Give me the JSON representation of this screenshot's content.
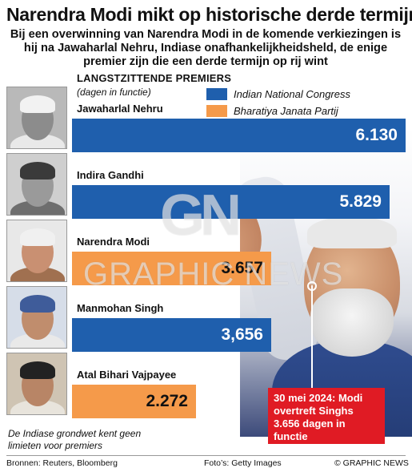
{
  "header": {
    "title": "Narendra Modi mikt op historische derde termijn",
    "subtitle": "Bij een overwinning van Narendra Modi in de komende verkiezingen is hij na Jawaharlal Nehru, Indiase onafhankelijkheidsheld, de enige premier zijn die een derde termijn op rij wint"
  },
  "chart_data": {
    "type": "bar",
    "orientation": "horizontal",
    "title": "LANGSTZITTENDE PREMIERS",
    "subtitle": "(dagen in functie)",
    "categories": [
      "Jawaharlal Nehru",
      "Indira Gandhi",
      "Narendra Modi",
      "Manmohan Singh",
      "Atal Bihari Vajpayee"
    ],
    "values": [
      6130,
      5829,
      3657,
      3656,
      2272
    ],
    "value_labels": [
      "6.130",
      "5.829",
      "3.657",
      "3,656",
      "2.272"
    ],
    "party": [
      "Indian National Congress",
      "Indian National Congress",
      "Bharatiya Janata Partij",
      "Indian National Congress",
      "Bharatiya Janata Partij"
    ],
    "legend": [
      {
        "name": "Indian National Congress",
        "color": "#1f5fad"
      },
      {
        "name": "Bharatiya Janata Partij",
        "color": "#f59a4a"
      }
    ],
    "legend_placement": "top-right",
    "xlim": [
      0,
      6130
    ],
    "grid": false
  },
  "portraits": [
    {
      "icon": "nehru-portrait-icon",
      "bg": "#b9b9b9",
      "face": "#8c8c8c",
      "hair": "#f2f2f2",
      "clothes": "#e9e9e9"
    },
    {
      "icon": "indira-portrait-icon",
      "bg": "#cfcfcf",
      "face": "#9a9a9a",
      "hair": "#3a3a3a",
      "clothes": "#6e6e6e"
    },
    {
      "icon": "modi-portrait-icon",
      "bg": "#e8e8e8",
      "face": "#c99072",
      "hair": "#f0f0f0",
      "clothes": "#a07050"
    },
    {
      "icon": "singh-portrait-icon",
      "bg": "#d6dde8",
      "face": "#c08d6d",
      "hair": "#3f5c9a",
      "clothes": "#e9e9e9"
    },
    {
      "icon": "vajpayee-portrait-icon",
      "bg": "#cfc4b3",
      "face": "#b88566",
      "hair": "#222222",
      "clothes": "#e8e4dc"
    }
  ],
  "callout": {
    "text": "30 mei 2024: Modi overtreft Singhs 3.656 dagen in functie",
    "color": "#e01b24"
  },
  "footnote": "De Indiase grondwet kent geen limieten voor premiers",
  "footer": {
    "sources": "Bronnen: Reuters, Bloomberg",
    "photo_credit": "Foto’s: Getty Images",
    "copyright": "© GRAPHIC NEWS"
  },
  "watermark": {
    "logo": "GN",
    "text": "GRAPHIC NEWS"
  }
}
